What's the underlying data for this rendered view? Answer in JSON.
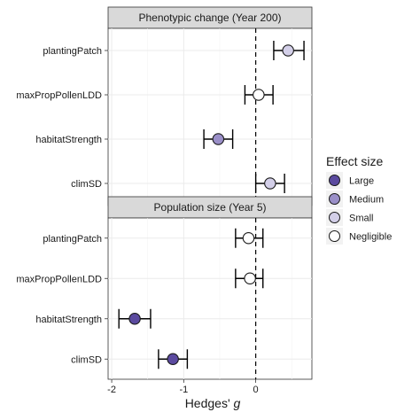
{
  "chart_data": {
    "type": "forest",
    "xlabel": "Hedges' ",
    "xlabel_italic": "g",
    "xlim": [
      -2.05,
      0.78
    ],
    "xticks": [
      -2,
      -1,
      0
    ],
    "xtick_labels": [
      "-2",
      "-1",
      "0"
    ],
    "reference_line_x": 0,
    "grid": true,
    "legend": {
      "title": "Effect size",
      "placement": "right",
      "items": [
        {
          "label": "Large",
          "color": "#5b4a9f"
        },
        {
          "label": "Medium",
          "color": "#9a8fc8"
        },
        {
          "label": "Small",
          "color": "#d3cfe8"
        },
        {
          "label": "Negligible",
          "color": "#ffffff"
        }
      ]
    },
    "categories": [
      "planting Patch",
      "maxPropPollenLDD",
      "habitatStrength",
      "climSD"
    ],
    "panels": [
      {
        "title": "Phenotypic change (Year 200)",
        "points": [
          {
            "label": "plantingPatch",
            "estimate": 0.45,
            "lower": 0.25,
            "upper": 0.67,
            "effect": "Small"
          },
          {
            "label": "maxPropPollenLDD",
            "estimate": 0.04,
            "lower": -0.15,
            "upper": 0.24,
            "effect": "Negligible"
          },
          {
            "label": "habitatStrength",
            "estimate": -0.52,
            "lower": -0.72,
            "upper": -0.32,
            "effect": "Medium"
          },
          {
            "label": "climSD",
            "estimate": 0.2,
            "lower": 0.0,
            "upper": 0.4,
            "effect": "Small"
          }
        ]
      },
      {
        "title": "Population size (Year 5)",
        "points": [
          {
            "label": "plantingPatch",
            "estimate": -0.1,
            "lower": -0.28,
            "upper": 0.1,
            "effect": "Negligible"
          },
          {
            "label": "maxPropPollenLDD",
            "estimate": -0.08,
            "lower": -0.28,
            "upper": 0.1,
            "effect": "Negligible"
          },
          {
            "label": "habitatStrength",
            "estimate": -1.68,
            "lower": -1.9,
            "upper": -1.46,
            "effect": "Large"
          },
          {
            "label": "climSD",
            "estimate": -1.15,
            "lower": -1.35,
            "upper": -0.95,
            "effect": "Large"
          }
        ]
      }
    ]
  }
}
